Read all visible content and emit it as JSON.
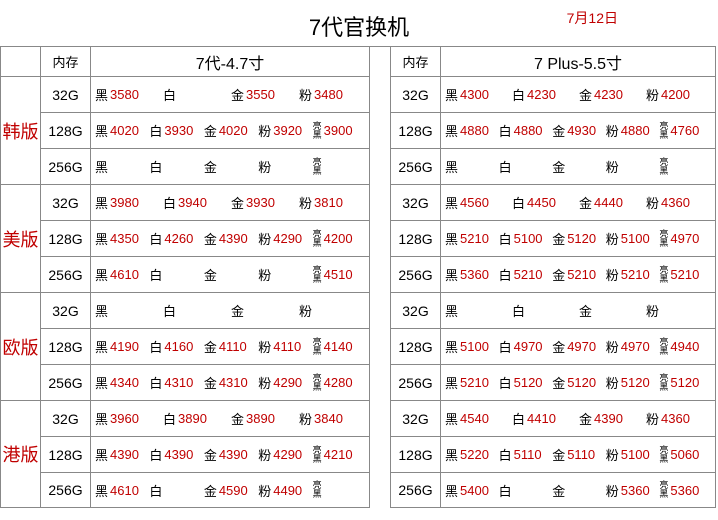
{
  "title": "7代官换机",
  "date": "7月12日",
  "colors": {
    "accent": "#c00000",
    "border": "#888888",
    "text": "#000000",
    "bg": "#ffffff"
  },
  "typography": {
    "title_fontsize": 22,
    "variant_fontsize": 18,
    "cell_fontsize": 13
  },
  "models": {
    "left": "7代-4.7寸",
    "right": "7 Plus-5.5寸"
  },
  "memHeader": "内存",
  "color_labels": {
    "black": "黑",
    "white": "白",
    "gold": "金",
    "pink": "粉",
    "jet": "亮黑"
  },
  "variants": [
    {
      "name": "韩版",
      "rows": [
        {
          "mem": "32G",
          "left": [
            "3580",
            "",
            "3550",
            "3480",
            null
          ],
          "right": [
            "4300",
            "4230",
            "4230",
            "4200",
            null
          ]
        },
        {
          "mem": "128G",
          "left": [
            "4020",
            "3930",
            "4020",
            "3920",
            "3900"
          ],
          "right": [
            "4880",
            "4880",
            "4930",
            "4880",
            "4760"
          ]
        },
        {
          "mem": "256G",
          "left": [
            "",
            "",
            "",
            "",
            ""
          ],
          "right": [
            "",
            "",
            "",
            "",
            ""
          ]
        }
      ]
    },
    {
      "name": "美版",
      "rows": [
        {
          "mem": "32G",
          "left": [
            "3980",
            "3940",
            "3930",
            "3810",
            null
          ],
          "right": [
            "4560",
            "4450",
            "4440",
            "4360",
            null
          ]
        },
        {
          "mem": "128G",
          "left": [
            "4350",
            "4260",
            "4390",
            "4290",
            "4200"
          ],
          "right": [
            "5210",
            "5100",
            "5120",
            "5100",
            "4970"
          ]
        },
        {
          "mem": "256G",
          "left": [
            "4610",
            "",
            "",
            "",
            "4510"
          ],
          "right": [
            "5360",
            "5210",
            "5210",
            "5210",
            "5210"
          ]
        }
      ]
    },
    {
      "name": "欧版",
      "rows": [
        {
          "mem": "32G",
          "left": [
            "",
            "",
            "",
            "",
            null
          ],
          "right": [
            "",
            "",
            "",
            "",
            null
          ]
        },
        {
          "mem": "128G",
          "left": [
            "4190",
            "4160",
            "4110",
            "4110",
            "4140"
          ],
          "right": [
            "5100",
            "4970",
            "4970",
            "4970",
            "4940"
          ]
        },
        {
          "mem": "256G",
          "left": [
            "4340",
            "4310",
            "4310",
            "4290",
            "4280"
          ],
          "right": [
            "5210",
            "5120",
            "5120",
            "5120",
            "5120"
          ]
        }
      ]
    },
    {
      "name": "港版",
      "rows": [
        {
          "mem": "32G",
          "left": [
            "3960",
            "3890",
            "3890",
            "3840",
            null
          ],
          "right": [
            "4540",
            "4410",
            "4390",
            "4360",
            null
          ]
        },
        {
          "mem": "128G",
          "left": [
            "4390",
            "4390",
            "4390",
            "4290",
            "4210"
          ],
          "right": [
            "5220",
            "5110",
            "5110",
            "5100",
            "5060"
          ]
        },
        {
          "mem": "256G",
          "left": [
            "4610",
            "",
            "4590",
            "4490",
            ""
          ],
          "right": [
            "5400",
            "",
            "",
            "5360",
            "5360"
          ]
        }
      ]
    }
  ]
}
